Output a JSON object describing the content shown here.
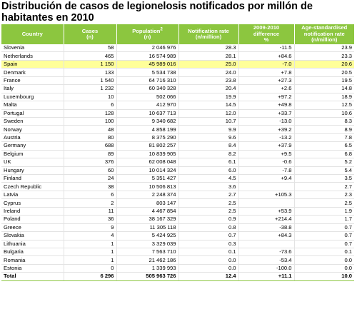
{
  "title": "Distribución de casos de legionelosis notificados por millón de habitantes en 2010",
  "colors": {
    "header_bg": "#8cc63f",
    "highlight_row": "#ffff99"
  },
  "highlight_country": "Spain",
  "columns": [
    {
      "label": "Country",
      "sub": ""
    },
    {
      "label": "Cases",
      "sub": "(n)"
    },
    {
      "label": "Population",
      "sup": "2",
      "sub": "(n)"
    },
    {
      "label": "Notification rate",
      "sub": "(n/million)"
    },
    {
      "label": "2009-2010",
      "sub": "difference",
      "sub2": "%"
    },
    {
      "label": "Age-standardised",
      "sub": "notification rate",
      "sub2": "(n/million)"
    }
  ],
  "rows": [
    {
      "country": "Slovenia",
      "cases": "58",
      "population": "2 046 976",
      "rate": "28.3",
      "diff": "-11.5",
      "age_rate": "23.9"
    },
    {
      "country": "Netherlands",
      "cases": "465",
      "population": "16 574 989",
      "rate": "28.1",
      "diff": "+84.6",
      "age_rate": "23.3"
    },
    {
      "country": "Spain",
      "cases": "1 150",
      "population": "45 989 016",
      "rate": "25.0",
      "diff": "-7.0",
      "age_rate": "20.6"
    },
    {
      "country": "Denmark",
      "cases": "133",
      "population": "5 534 738",
      "rate": "24.0",
      "diff": "+7.8",
      "age_rate": "20.5"
    },
    {
      "country": "France",
      "cases": "1 540",
      "population": "64 716 310",
      "rate": "23.8",
      "diff": "+27.3",
      "age_rate": "19.5"
    },
    {
      "country": "Italy",
      "cases": "1 232",
      "population": "60 340 328",
      "rate": "20.4",
      "diff": "+2.6",
      "age_rate": "14.8"
    },
    {
      "country": "Luxembourg",
      "cases": "10",
      "population": "502 066",
      "rate": "19.9",
      "diff": "+97.2",
      "age_rate": "18.9"
    },
    {
      "country": "Malta",
      "cases": "6",
      "population": "412 970",
      "rate": "14.5",
      "diff": "+49.8",
      "age_rate": "12.5"
    },
    {
      "country": "Portugal",
      "cases": "128",
      "population": "10 637 713",
      "rate": "12.0",
      "diff": "+33.7",
      "age_rate": "10.6"
    },
    {
      "country": "Sweden",
      "cases": "100",
      "population": "9 340 682",
      "rate": "10.7",
      "diff": "-13.0",
      "age_rate": "8.3"
    },
    {
      "country": "Norway",
      "cases": "48",
      "population": "4 858 199",
      "rate": "9.9",
      "diff": "+39.2",
      "age_rate": "8.9"
    },
    {
      "country": "Austria",
      "cases": "80",
      "population": "8 375 290",
      "rate": "9.6",
      "diff": "-13.2",
      "age_rate": "7.8"
    },
    {
      "country": "Germany",
      "cases": "688",
      "population": "81 802 257",
      "rate": "8.4",
      "diff": "+37.9",
      "age_rate": "6.5"
    },
    {
      "country": "Belgium",
      "cases": "89",
      "population": "10 839 905",
      "rate": "8.2",
      "diff": "+9.5",
      "age_rate": "6.8"
    },
    {
      "country": "UK",
      "cases": "376",
      "population": "62 008 048",
      "rate": "6.1",
      "diff": "-0.6",
      "age_rate": "5.2"
    },
    {
      "country": "Hungary",
      "cases": "60",
      "population": "10 014 324",
      "rate": "6.0",
      "diff": "-7.8",
      "age_rate": "5.4"
    },
    {
      "country": "Finland",
      "cases": "24",
      "population": "5 351 427",
      "rate": "4.5",
      "diff": "+9.4",
      "age_rate": "3.5"
    },
    {
      "country": "Czech Republic",
      "cases": "38",
      "population": "10 506 813",
      "rate": "3.6",
      "diff": "",
      "age_rate": "2.7"
    },
    {
      "country": "Latvia",
      "cases": "6",
      "population": "2 248 374",
      "rate": "2.7",
      "diff": "+105.3",
      "age_rate": "2.3"
    },
    {
      "country": "Cyprus",
      "cases": "2",
      "population": "803 147",
      "rate": "2.5",
      "diff": "",
      "age_rate": "2.5"
    },
    {
      "country": "Ireland",
      "cases": "11",
      "population": "4 467 854",
      "rate": "2.5",
      "diff": "+53.9",
      "age_rate": "1.9"
    },
    {
      "country": "Poland",
      "cases": "36",
      "population": "38 167 329",
      "rate": "0.9",
      "diff": "+214.4",
      "age_rate": "1.7"
    },
    {
      "country": "Greece",
      "cases": "9",
      "population": "11 305 118",
      "rate": "0.8",
      "diff": "-38.8",
      "age_rate": "0.7"
    },
    {
      "country": "Slovakia",
      "cases": "4",
      "population": "5 424 925",
      "rate": "0.7",
      "diff": "+84.3",
      "age_rate": "0.7"
    },
    {
      "country": "Lithuania",
      "cases": "1",
      "population": "3 329 039",
      "rate": "0.3",
      "diff": "",
      "age_rate": "0.7"
    },
    {
      "country": "Bulgaria",
      "cases": "1",
      "population": "7 563 710",
      "rate": "0.1",
      "diff": "-73.6",
      "age_rate": "0.1"
    },
    {
      "country": "Romania",
      "cases": "1",
      "population": "21 462 186",
      "rate": "0.0",
      "diff": "-53.4",
      "age_rate": "0.0"
    },
    {
      "country": "Estonia",
      "cases": "0",
      "population": "1 339 993",
      "rate": "0.0",
      "diff": "-100.0",
      "age_rate": "0.0"
    }
  ],
  "total": {
    "label": "Total",
    "cases": "6 296",
    "population": "505 963 726",
    "rate": "12.4",
    "diff": "+11.1",
    "age_rate": "10.0"
  }
}
